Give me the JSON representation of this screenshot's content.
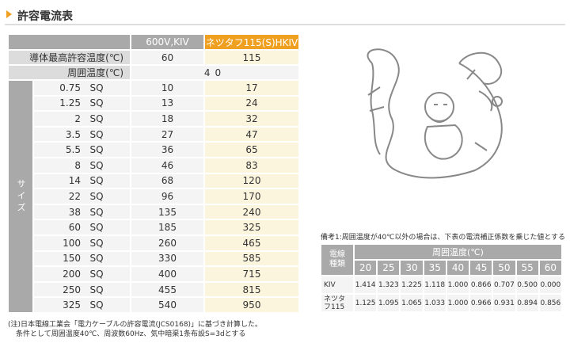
{
  "header": {
    "title": "許容電流表"
  },
  "main_table": {
    "columns": [
      "600V,KIV",
      "ネツタフ115(S)HKIV"
    ],
    "max_temp": {
      "label": "導体最高許容温度(℃)",
      "values": [
        "60",
        "115"
      ]
    },
    "ambient": {
      "label": "周囲温度(℃)",
      "value": "40"
    },
    "size_label": "サイズ",
    "unit": "SQ",
    "rows": [
      [
        "0.75",
        "10",
        "17"
      ],
      [
        "1.25",
        "13",
        "24"
      ],
      [
        "2",
        "18",
        "32"
      ],
      [
        "3.5",
        "27",
        "47"
      ],
      [
        "5.5",
        "36",
        "65"
      ],
      [
        "8",
        "46",
        "83"
      ],
      [
        "14",
        "68",
        "120"
      ],
      [
        "22",
        "96",
        "170"
      ],
      [
        "38",
        "135",
        "240"
      ],
      [
        "60",
        "185",
        "325"
      ],
      [
        "100",
        "260",
        "465"
      ],
      [
        "150",
        "330",
        "585"
      ],
      [
        "200",
        "400",
        "715"
      ],
      [
        "250",
        "455",
        "815"
      ],
      [
        "325",
        "540",
        "950"
      ]
    ]
  },
  "notes": [
    "(注)日本電線工業会「電力ケーブルの許容電流(JCS0168)」に基づき計算した。",
    "条件として周囲温度40℃、周波数60Hz、気中暗渠1条布設S=3dとする"
  ],
  "remark": "備考1:周囲温度が40℃以外の場合は、下表の電流補正係数を乗じた値とする",
  "factor_table": {
    "row_header": "電線種類",
    "temp_header": "周囲温度(℃)",
    "temps": [
      "20",
      "25",
      "30",
      "35",
      "40",
      "45",
      "50",
      "55",
      "60"
    ],
    "rows": [
      {
        "name": "KIV",
        "values": [
          "1.414",
          "1.323",
          "1.225",
          "1.118",
          "1.000",
          "0.866",
          "0.707",
          "0.500",
          "0.000"
        ]
      },
      {
        "name": "ネツタフ115",
        "values": [
          "1.125",
          "1.095",
          "1.065",
          "1.033",
          "1.000",
          "0.966",
          "0.931",
          "0.894",
          "0.856"
        ]
      }
    ]
  }
}
